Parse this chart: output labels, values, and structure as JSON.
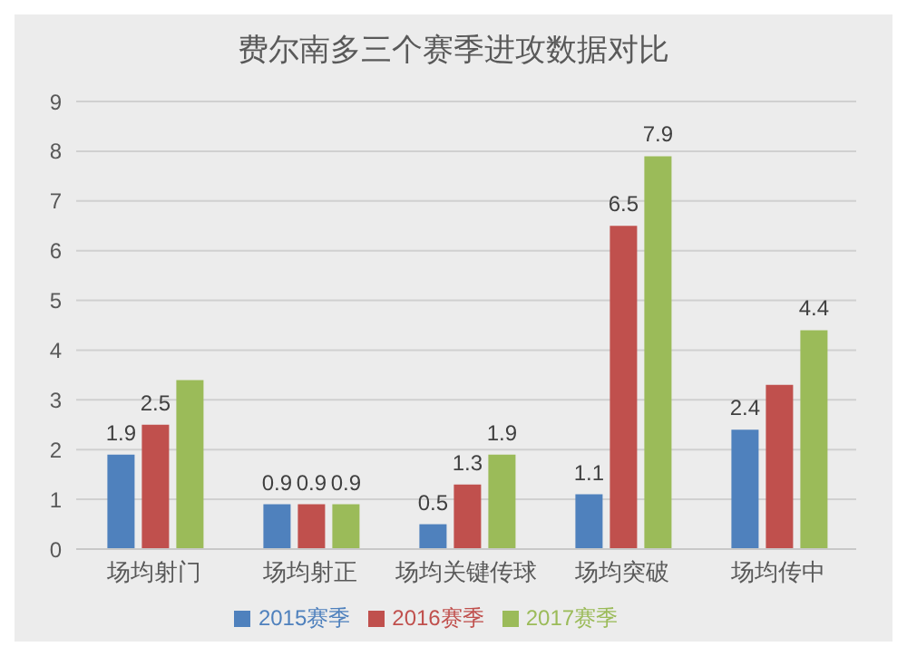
{
  "chart_data": {
    "type": "bar",
    "title": "费尔南多三个赛季进攻数据对比",
    "categories": [
      "场均射门",
      "场均射正",
      "场均关键传球",
      "场均突破",
      "场均传中"
    ],
    "series": [
      {
        "name": "2015赛季",
        "color": "#4f81bd",
        "values": [
          1.9,
          0.9,
          0.5,
          1.1,
          2.4
        ],
        "value_labels": [
          "1.9",
          "0.9",
          "0.5",
          "1.1",
          "2.4"
        ]
      },
      {
        "name": "2016赛季",
        "color": "#c0504d",
        "values": [
          2.5,
          0.9,
          1.3,
          6.5,
          3.3
        ],
        "value_labels": [
          "2.5",
          "0.9",
          "1.3",
          "6.5",
          null
        ]
      },
      {
        "name": "2017赛季",
        "color": "#9bbb59",
        "values": [
          3.4,
          0.9,
          1.9,
          7.9,
          4.4
        ],
        "value_labels": [
          null,
          "0.9",
          "1.9",
          "7.9",
          "4.4"
        ]
      }
    ],
    "ylim": [
      0,
      9
    ],
    "yticks": [
      0,
      1,
      2,
      3,
      4,
      5,
      6,
      7,
      8,
      9
    ],
    "grid": "y",
    "legend": "bottom"
  }
}
